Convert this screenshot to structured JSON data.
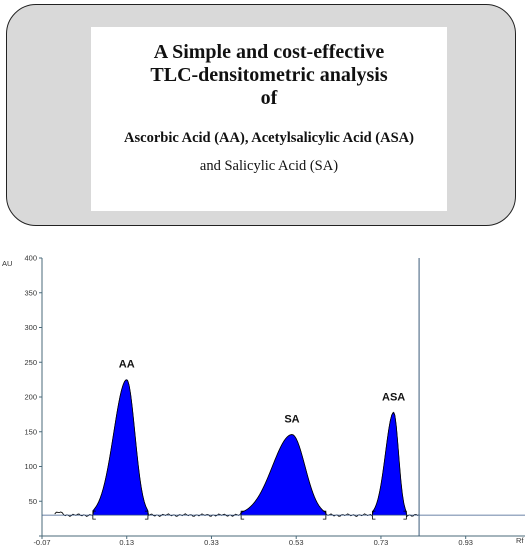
{
  "header": {
    "line1": "A Simple and cost-effective",
    "line2": "TLC-densitometric analysis",
    "line3": "of",
    "line4": "Ascorbic Acid (AA), Acetylsalicylic Acid (ASA)",
    "line5": "and Salicylic Acid (SA)"
  },
  "chart_data": {
    "type": "area",
    "ylabel": "AU",
    "xlabel": "Rf",
    "xlim": [
      -0.07,
      1.07
    ],
    "ylim": [
      0,
      400
    ],
    "x_ticks": [
      "-0.07",
      "0.13",
      "0.33",
      "0.53",
      "0.73",
      "0.93"
    ],
    "y_ticks": [
      "50",
      "100",
      "150",
      "200",
      "250",
      "300",
      "350",
      "400"
    ],
    "baseline": 30,
    "cursor_x": 0.82,
    "peaks": [
      {
        "name": "AA",
        "rf": 0.13,
        "height": 225,
        "start": 0.05,
        "end": 0.18
      },
      {
        "name": "SA",
        "rf": 0.52,
        "height": 146,
        "start": 0.4,
        "end": 0.6
      },
      {
        "name": "ASA",
        "rf": 0.76,
        "height": 178,
        "start": 0.71,
        "end": 0.79
      }
    ],
    "colors": {
      "fill": "#0000ff",
      "line": "#000000",
      "axis": "#4a6a7a"
    }
  }
}
